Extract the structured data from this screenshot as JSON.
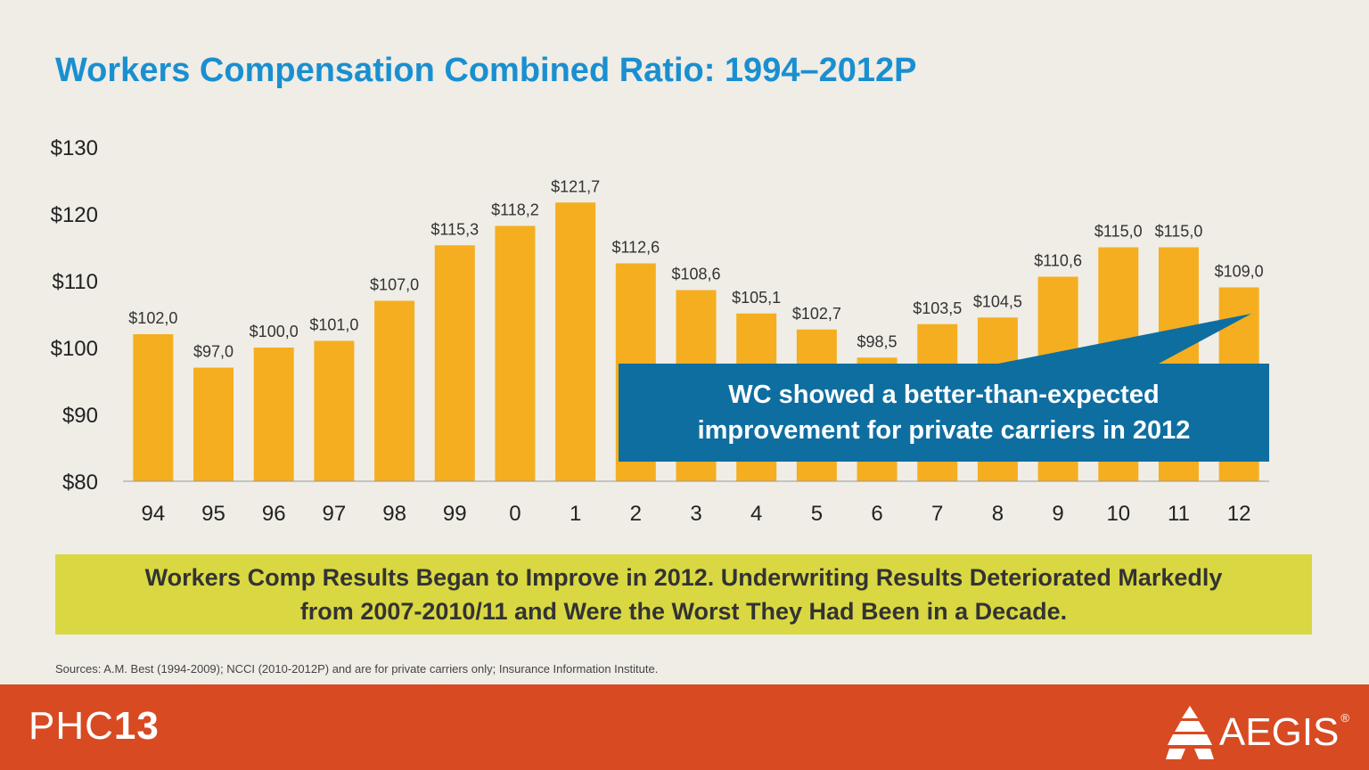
{
  "title": "Workers Compensation Combined Ratio: 1994–2012P",
  "chart_data": {
    "type": "bar",
    "categories": [
      "94",
      "95",
      "96",
      "97",
      "98",
      "99",
      "0",
      "1",
      "2",
      "3",
      "4",
      "5",
      "6",
      "7",
      "8",
      "9",
      "10",
      "11",
      "12"
    ],
    "values": [
      102.0,
      97.0,
      100.0,
      101.0,
      107.0,
      115.3,
      118.2,
      121.7,
      112.6,
      108.6,
      105.1,
      102.7,
      98.5,
      103.5,
      104.5,
      110.6,
      115.0,
      115.0,
      109.0
    ],
    "data_labels": [
      "$102,0",
      "$97,0",
      "$100,0",
      "$101,0",
      "$107,0",
      "$115,3",
      "$118,2",
      "$121,7",
      "$112,6",
      "$108,6",
      "$105,1",
      "$102,7",
      "$98,5",
      "$103,5",
      "$104,5",
      "$110,6",
      "$115,0",
      "$115,0",
      "$109,0"
    ],
    "y_ticks": [
      80,
      90,
      100,
      110,
      120,
      130
    ],
    "y_tick_labels": [
      "$80",
      "$90",
      "$100",
      "$110",
      "$120",
      "$130"
    ],
    "ylim": [
      80,
      130
    ],
    "grid": false,
    "bar_color": "#f5ae1f"
  },
  "callout": {
    "text": "WC showed a better-than-expected\nimprovement for private carriers in 2012",
    "color": "#0e6ea0"
  },
  "banner": {
    "text": "Workers Comp Results Began to Improve in 2012. Underwriting Results  Deteriorated Markedly\nfrom 2007-2010/11 and Were the Worst They Had Been in a Decade."
  },
  "source": "Sources: A.M. Best (1994-2009); NCCI (2010-2012P) and are for private carriers only; Insurance Information Institute.",
  "footer": {
    "phc_thin": "PHC",
    "phc_bold": "13",
    "aegis": "AEGIS",
    "aegis_reg": "®"
  }
}
